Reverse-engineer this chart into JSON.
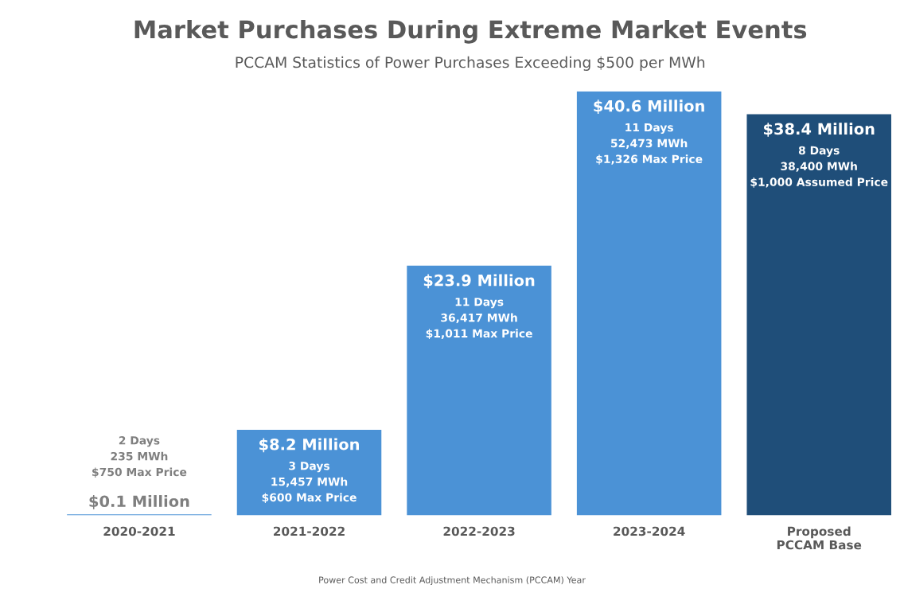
{
  "chart_data": {
    "type": "bar",
    "title": "Market Purchases During Extreme Market Events",
    "subtitle": "PCCAM Statistics of Power Purchases Exceeding $500 per MWh",
    "xlabel": "Power Cost and Credit Adjustment Mechanism (PCCAM) Year",
    "categories": [
      "2020-2021",
      "2021-2022",
      "2022-2023",
      "2023-2024",
      "Proposed\nPCCAM Base"
    ],
    "values": [
      0.1,
      8.2,
      23.9,
      40.6,
      38.4
    ],
    "colors": [
      "#4b92d6",
      "#4b92d6",
      "#4b92d6",
      "#4b92d6",
      "#1f4e79"
    ],
    "value_labels": [
      "$0.1 Million",
      "$8.2 Million",
      "$23.9 Million",
      "$40.6 Million",
      "$38.4 Million"
    ],
    "annotations": [
      "2 Days\n235 MWh\n$750 Max Price",
      "3 Days\n15,457 MWh\n$600 Max Price",
      "11 Days\n36,417 MWh\n$1,011 Max Price",
      "11 Days\n52,473 MWh\n$1,326 Max Price",
      "8 Days\n38,400 MWh\n$1,000 Assumed Price"
    ],
    "grid": false,
    "legend": false
  }
}
